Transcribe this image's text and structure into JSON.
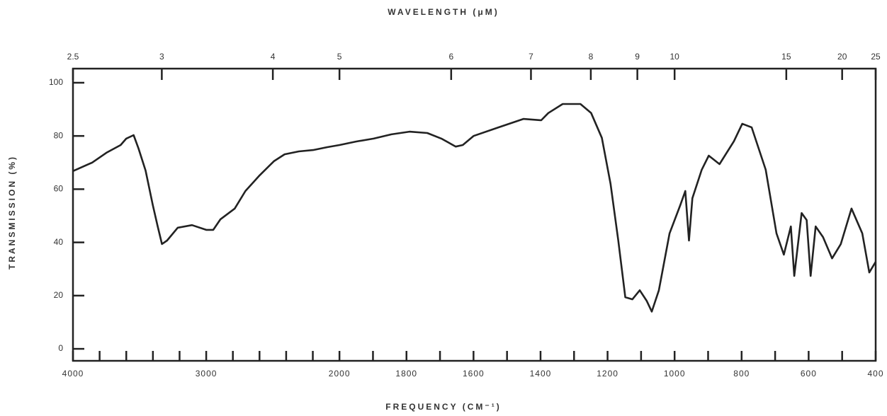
{
  "chart_data": {
    "type": "line",
    "title": "WAVELENGTH (μM)",
    "xlabel": "FREQUENCY (CM⁻¹)",
    "ylabel": "TRANSMISSION (%)",
    "xlim": [
      4000,
      400
    ],
    "xscale_break": 2000,
    "xticks": [
      4000,
      3000,
      2000,
      1800,
      1600,
      1400,
      1200,
      1000,
      800,
      600,
      400
    ],
    "xminor_ticks": [
      3800,
      3600,
      3400,
      3200,
      2800,
      2600,
      2400,
      2200,
      1900,
      1700,
      1500,
      1300,
      1100,
      900,
      700,
      500
    ],
    "x2ticks": [
      2.5,
      3,
      4,
      5,
      6,
      7,
      8,
      9,
      10,
      15,
      20,
      25
    ],
    "ylim": [
      -4.5,
      105.3
    ],
    "yticks": [
      0,
      20,
      40,
      60,
      80,
      100
    ],
    "x": [
      4000,
      3856,
      3749,
      3642,
      3600,
      3545,
      3508,
      3455,
      3401,
      3364,
      3332,
      3294,
      3214,
      3107,
      3000,
      2947,
      2893,
      2786,
      2706,
      2599,
      2492,
      2412,
      2305,
      2198,
      2091,
      2000,
      1951,
      1898,
      1845,
      1791,
      1738,
      1696,
      1653,
      1632,
      1600,
      1526,
      1451,
      1398,
      1377,
      1334,
      1281,
      1249,
      1217,
      1191,
      1168,
      1147,
      1126,
      1104,
      1083,
      1068,
      1047,
      1015,
      983,
      968,
      957,
      947,
      919,
      898,
      866,
      823,
      798,
      770,
      728,
      696,
      674,
      653,
      643,
      621,
      606,
      594,
      579,
      557,
      530,
      504,
      472,
      440,
      419,
      400
    ],
    "series": [
      {
        "color": "#222222",
        "values": [
          66.8,
          70,
          73.7,
          76.6,
          79,
          80.3,
          75.3,
          67,
          54,
          46,
          39.4,
          40.7,
          45.5,
          46.5,
          44.7,
          44.7,
          48.7,
          52.7,
          59.3,
          65.2,
          70.5,
          73.1,
          74.2,
          74.7,
          75.8,
          76.6,
          77.9,
          79,
          80.6,
          81.6,
          81.1,
          79,
          76,
          76.6,
          80,
          83.2,
          86.4,
          85.9,
          88.6,
          92,
          92,
          88.6,
          79.3,
          62,
          40.7,
          19.4,
          18.6,
          22,
          18,
          14,
          22,
          43.4,
          54,
          59.3,
          40.7,
          56.6,
          67.3,
          72.6,
          69.4,
          78,
          84.6,
          83.2,
          67.3,
          43.4,
          35.4,
          46,
          27.4,
          51,
          48.4,
          27.4,
          46,
          42,
          34,
          39.4,
          52.7,
          43.4,
          28.7,
          32.7
        ]
      }
    ]
  }
}
